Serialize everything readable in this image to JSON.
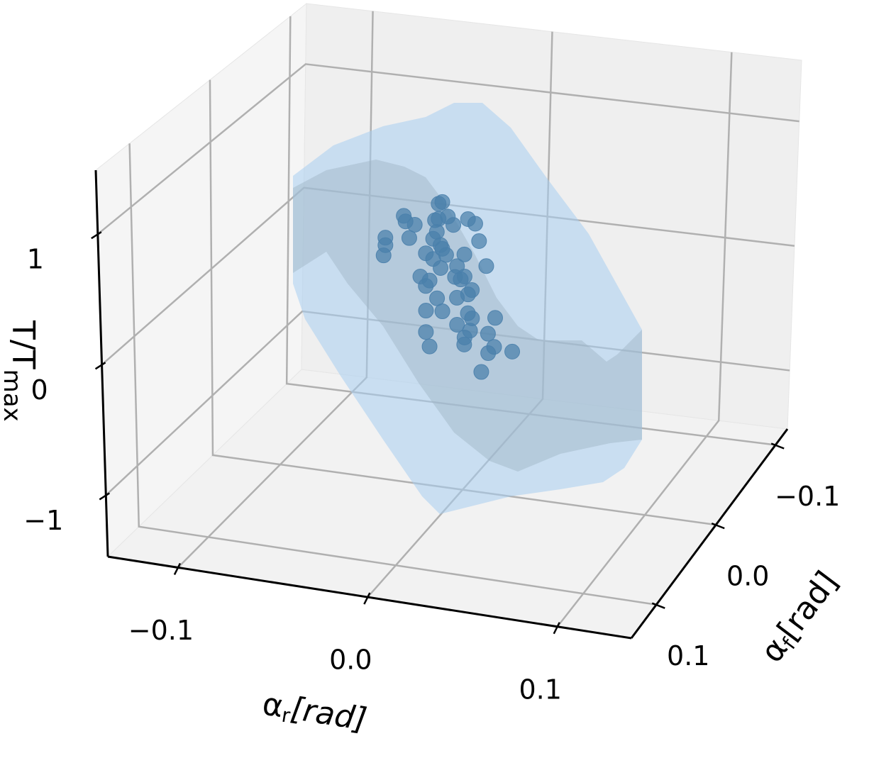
{
  "chart_data": {
    "type": "scatter3d",
    "x_label": {
      "symbol": "α",
      "subscript": "r",
      "unit": "[rad]"
    },
    "y_label": {
      "symbol": "α",
      "subscript": "f",
      "unit": "[rad]"
    },
    "z_label": {
      "symbol": "T/T",
      "subscript": "max"
    },
    "xlim": [
      -0.137,
      0.139
    ],
    "ylim": [
      -0.12,
      0.142
    ],
    "zlim": [
      -1.47,
      1.49
    ],
    "xticks": [
      {
        "value": -0.1,
        "label": "−0.1"
      },
      {
        "value": 0,
        "label": "0.0"
      },
      0.1
    ],
    "yticks": [
      {
        "value": -0.1,
        "label": "−0.1"
      },
      {
        "value": 0,
        "label": "0.0"
      },
      0.1
    ],
    "zticks": [
      {
        "value": -1,
        "label": "−1"
      },
      0,
      1
    ],
    "grid": true,
    "color": "#4a80ab",
    "x": [
      -0.009,
      -0.015,
      -0.011,
      -0.008,
      -0.017,
      -0.012,
      -0.005,
      0.001,
      -0.027,
      -0.032,
      -0.028,
      -0.04,
      -0.042,
      -0.039,
      -0.031,
      -0.016,
      -0.01,
      0.003,
      0.009,
      -0.018,
      -0.013,
      -0.005,
      0.001,
      -0.018,
      -0.01,
      -0.003,
      0.005,
      0.011,
      -0.023,
      -0.016,
      -0.008,
      -0.001,
      0.007,
      -0.022,
      -0.01,
      0.003,
      -0.005,
      -0.018,
      -0.011,
      0.009,
      0.001,
      -0.003,
      0.006,
      0.014,
      -0.02,
      0.003,
      0.012,
      0.021,
      -0.018,
      -0.001,
      0.029,
      0.014,
      0.014
    ],
    "y": [
      0.005,
      -0.005,
      0.01,
      0,
      -0.01,
      0.005,
      0,
      -0.005,
      0.01,
      0,
      -0.005,
      0.005,
      0,
      0.01,
      -0.005,
      0,
      0.005,
      -0.01,
      0,
      0.005,
      -0.005,
      0.01,
      0,
      -0.005,
      0.005,
      0,
      0.01,
      -0.005,
      0,
      0.005,
      -0.01,
      0,
      0.005,
      -0.005,
      0.01,
      0,
      -0.005,
      0.005,
      0,
      0.01,
      -0.005,
      0,
      0.005,
      -0.01,
      0,
      0.005,
      -0.005,
      0.01,
      0,
      -0.005,
      0.005,
      0,
      0.01
    ],
    "z": [
      0.8,
      0.72,
      0.68,
      0.66,
      0.57,
      0.56,
      0.6,
      0.63,
      0.64,
      0.62,
      0.53,
      0.46,
      0.37,
      0.35,
      0.42,
      0.47,
      0.46,
      0.57,
      0.5,
      0.38,
      0.37,
      0.42,
      0.38,
      0.28,
      0.28,
      0.28,
      0.27,
      0.28,
      0.16,
      0.17,
      0.13,
      0.18,
      0.14,
      0.06,
      0.07,
      0.07,
      0.0,
      -0.07,
      -0.09,
      -0.05,
      -0.11,
      -0.18,
      -0.18,
      -0.15,
      -0.27,
      -0.24,
      -0.25,
      -0.25,
      -0.38,
      -0.36,
      -0.3,
      -0.37,
      -0.46
    ]
  }
}
